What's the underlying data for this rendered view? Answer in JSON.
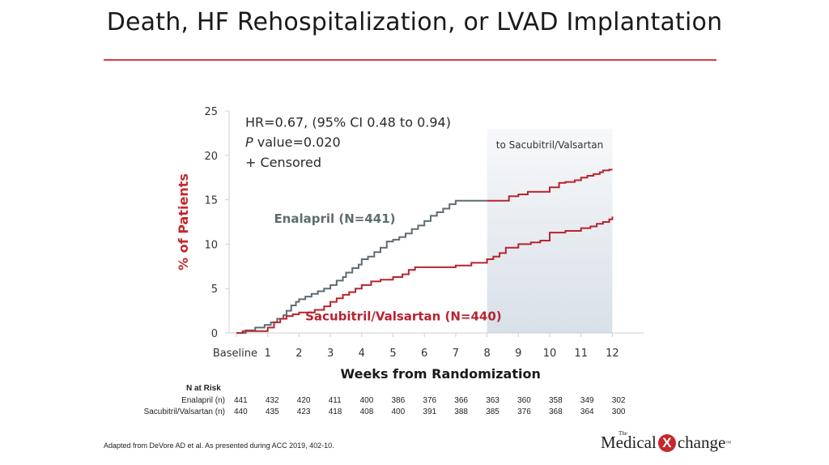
{
  "slide": {
    "title": "Death, HF Rehospitalization, or LVAD Implantation",
    "source": "Adapted from DeVore AD et al. As presented during ACC 2019, 402-10.",
    "logo": {
      "the": "The",
      "left": "Medical",
      "x": "X",
      "right": "change",
      "tm": "™"
    },
    "accent_color": "#d43c44"
  },
  "chart_data": {
    "type": "line",
    "subtype": "kaplan-meier-step",
    "title": "Death, HF Rehospitalization, or LVAD Implantation",
    "xlabel": "Weeks from Randomization",
    "ylabel": "% of Patients",
    "xlim": [
      0,
      13
    ],
    "ylim": [
      0,
      25
    ],
    "xticks": [
      0,
      1,
      2,
      3,
      4,
      5,
      6,
      7,
      8,
      9,
      10,
      11,
      12
    ],
    "xtick_labels": [
      "Baseline",
      "1",
      "2",
      "3",
      "4",
      "5",
      "6",
      "7",
      "8",
      "9",
      "10",
      "11",
      "12"
    ],
    "yticks": [
      0,
      5,
      10,
      15,
      20,
      25
    ],
    "ytick_labels": [
      "0",
      "5",
      "10",
      "15",
      "20",
      "25"
    ],
    "grid": false,
    "annotations": {
      "hr": "HR=0.67, (95% CI 0.48 to 0.94)",
      "p_italic": "P",
      "p_rest": " value=0.020",
      "censored": "+ Censored"
    },
    "shaded_region": {
      "x_start": 8,
      "x_end": 12,
      "label": "to Sacubitril/Valsartan",
      "color": "#dfe5ec"
    },
    "series": [
      {
        "name": "Enalapril (N=441)",
        "color": "#5f6b72",
        "x": [
          0,
          0.3,
          0.6,
          0.9,
          1.1,
          1.3,
          1.5,
          1.6,
          1.75,
          1.9,
          2.0,
          2.2,
          2.4,
          2.6,
          2.8,
          3.0,
          3.2,
          3.4,
          3.5,
          3.7,
          3.9,
          4.0,
          4.2,
          4.4,
          4.6,
          4.8,
          5.0,
          5.2,
          5.4,
          5.6,
          5.8,
          6.0,
          6.2,
          6.4,
          6.6,
          6.8,
          7.0,
          8.0
        ],
        "y": [
          0,
          0.3,
          0.6,
          0.9,
          1.2,
          1.6,
          2.0,
          2.5,
          3.1,
          3.5,
          3.8,
          4.1,
          4.4,
          4.7,
          5.0,
          5.4,
          5.9,
          6.3,
          6.8,
          7.3,
          7.7,
          8.3,
          8.6,
          9.1,
          9.6,
          10.3,
          10.5,
          10.8,
          11.2,
          11.7,
          12.1,
          12.6,
          13.2,
          13.6,
          14.0,
          14.5,
          14.9,
          14.9
        ]
      },
      {
        "name": "Enalapril → Sacubitril/Valsartan",
        "color": "#b8232e",
        "x": [
          8.0,
          8.5,
          8.7,
          9.0,
          9.3,
          9.6,
          10.0,
          10.3,
          10.5,
          10.8,
          11.0,
          11.2,
          11.4,
          11.6,
          11.7,
          11.9,
          12.0
        ],
        "y": [
          14.9,
          14.9,
          15.4,
          15.6,
          15.9,
          15.9,
          16.4,
          16.9,
          17.0,
          17.2,
          17.5,
          17.7,
          17.9,
          18.1,
          18.3,
          18.4,
          18.4
        ]
      },
      {
        "name": "Sacubitril/Valsartan (N=440)",
        "color": "#b8232e",
        "x": [
          0,
          0.2,
          1.0,
          1.2,
          1.4,
          1.6,
          1.8,
          2.0,
          2.5,
          2.8,
          3.0,
          3.2,
          3.4,
          3.6,
          3.8,
          4.0,
          4.3,
          4.6,
          5.0,
          5.3,
          5.5,
          5.7,
          6.0,
          6.5,
          7.0,
          7.5,
          8.0,
          8.2,
          8.4,
          8.6,
          9.0,
          9.4,
          9.7,
          10.0,
          10.5,
          10.8,
          11.0,
          11.3,
          11.5,
          11.7,
          11.9,
          12.0
        ],
        "y": [
          0,
          0.2,
          0.6,
          1.2,
          1.6,
          1.9,
          2.1,
          2.3,
          2.6,
          3.0,
          3.5,
          3.9,
          4.3,
          4.6,
          5.0,
          5.4,
          5.8,
          6.0,
          6.3,
          6.6,
          7.1,
          7.4,
          7.4,
          7.4,
          7.6,
          7.9,
          8.3,
          8.6,
          9.0,
          9.6,
          10.0,
          10.2,
          10.4,
          11.3,
          11.5,
          11.5,
          11.8,
          12.0,
          12.3,
          12.5,
          12.8,
          13.1
        ]
      }
    ],
    "series_labels": [
      {
        "text": "Enalapril (N=441)",
        "color": "#5f6b72",
        "at": [
          1.2,
          12.4
        ]
      },
      {
        "text": "Sacubitril/Valsartan (N=440)",
        "color": "#b8232e",
        "at": [
          2.2,
          1.4
        ]
      }
    ],
    "ylabel_color": "#c4282e",
    "n_at_risk": {
      "header": "N at Risk",
      "rows": [
        {
          "label": "Enalapril (n)",
          "values": [
            441,
            432,
            420,
            411,
            400,
            386,
            376,
            366,
            363,
            360,
            358,
            349,
            302
          ]
        },
        {
          "label": "Sacubitril/Valsartan (n)",
          "values": [
            440,
            435,
            423,
            418,
            408,
            400,
            391,
            388,
            385,
            376,
            368,
            364,
            300
          ]
        }
      ]
    }
  }
}
